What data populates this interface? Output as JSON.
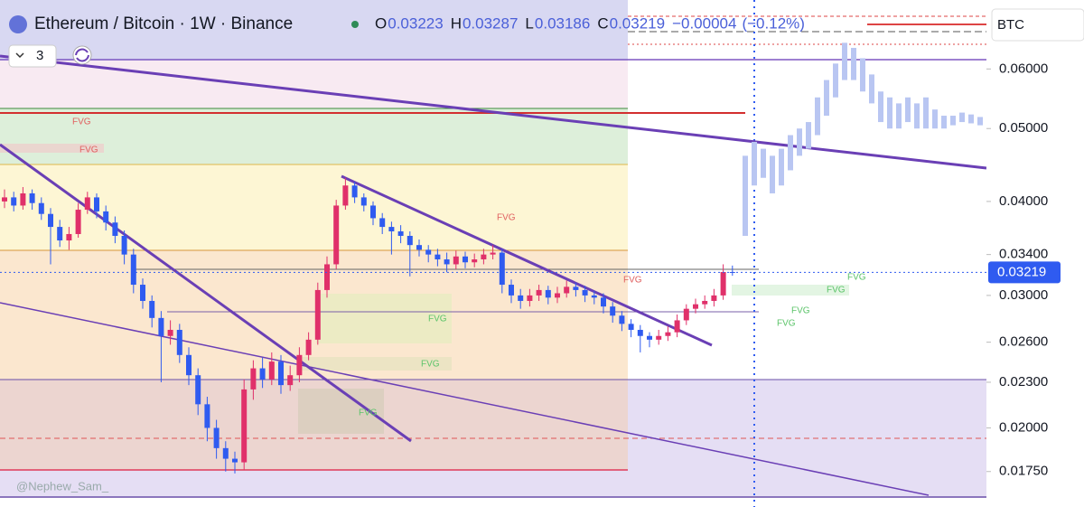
{
  "chart_data": {
    "type": "candlestick",
    "title": "Ethereum / Bitcoin · 1W · Binance",
    "ohlc_labels": [
      "O",
      "H",
      "L",
      "C"
    ],
    "change": {
      "value": -4e-05,
      "label": "−0.00004"
    },
    "change_percent": {
      "value": -0.12,
      "label": "(−0.12%)"
    },
    "currency": "BTC",
    "hidden_count": 3,
    "watermark": "@Nephew_Sam_",
    "log_scale": true,
    "up_color": "#e0306a",
    "down_color": "#2f5bf0",
    "projection_color": "#b9c6f2",
    "ylim": [
      0.0157,
      0.0741
    ],
    "yticks": [
      {
        "value": 0.06,
        "label": "0.06000"
      },
      {
        "value": 0.05,
        "label": "0.05000"
      },
      {
        "value": 0.04,
        "label": "0.04000"
      },
      {
        "value": 0.034,
        "label": "0.03400"
      },
      {
        "value": 0.03,
        "label": "0.03000"
      },
      {
        "value": 0.026,
        "label": "0.02600"
      },
      {
        "value": 0.023,
        "label": "0.02300"
      },
      {
        "value": 0.02,
        "label": "0.02000"
      },
      {
        "value": 0.0175,
        "label": "0.01750"
      }
    ],
    "last_price": 0.03219,
    "open": [
      0.04,
      0.0405,
      0.0395,
      0.041,
      0.0398,
      0.0385,
      0.037,
      0.0355,
      0.0362,
      0.039,
      0.0405,
      0.0388,
      0.0375,
      0.036,
      0.034,
      0.031,
      0.0295,
      0.028,
      0.0265,
      0.027,
      0.025,
      0.0235,
      0.0215,
      0.02,
      0.0188,
      0.0182,
      0.018,
      0.0225,
      0.024,
      0.0232,
      0.0245,
      0.0228,
      0.0235,
      0.025,
      0.0262,
      0.0305,
      0.033,
      0.0395,
      0.042,
      0.0405,
      0.0395,
      0.038,
      0.037,
      0.0365,
      0.036,
      0.035,
      0.0345,
      0.034,
      0.0335,
      0.033,
      0.0338,
      0.0332,
      0.0335,
      0.034,
      0.0342,
      0.031,
      0.03,
      0.0295,
      0.03,
      0.0305,
      0.0298,
      0.0302,
      0.0308,
      0.0305,
      0.03,
      0.0298,
      0.029,
      0.0282,
      0.0275,
      0.027,
      0.0265,
      0.0262,
      0.0265,
      0.0268,
      0.0278,
      0.0288,
      0.0292,
      0.0295,
      0.03,
      0.03223
    ],
    "high": [
      0.0415,
      0.0412,
      0.0418,
      0.0415,
      0.0405,
      0.0392,
      0.0378,
      0.037,
      0.0398,
      0.0412,
      0.041,
      0.0395,
      0.0382,
      0.0366,
      0.0346,
      0.0316,
      0.03,
      0.0286,
      0.0278,
      0.0275,
      0.0256,
      0.024,
      0.022,
      0.0205,
      0.0192,
      0.0186,
      0.0232,
      0.0246,
      0.0248,
      0.0252,
      0.025,
      0.0242,
      0.0256,
      0.0268,
      0.0312,
      0.0338,
      0.0402,
      0.043,
      0.0425,
      0.041,
      0.04,
      0.0386,
      0.0376,
      0.0372,
      0.0365,
      0.0356,
      0.035,
      0.0346,
      0.0342,
      0.0344,
      0.0343,
      0.0341,
      0.0346,
      0.035,
      0.0346,
      0.0315,
      0.0306,
      0.0306,
      0.031,
      0.0309,
      0.0308,
      0.0314,
      0.0312,
      0.0309,
      0.0304,
      0.0302,
      0.0294,
      0.0286,
      0.0279,
      0.0274,
      0.0268,
      0.027,
      0.0273,
      0.0283,
      0.0292,
      0.0297,
      0.03,
      0.0306,
      0.033,
      0.03287
    ],
    "low": [
      0.0392,
      0.0388,
      0.039,
      0.039,
      0.0378,
      0.033,
      0.0348,
      0.0345,
      0.0358,
      0.0385,
      0.038,
      0.0366,
      0.0352,
      0.033,
      0.0302,
      0.0288,
      0.0272,
      0.023,
      0.0258,
      0.0244,
      0.0228,
      0.0208,
      0.0192,
      0.0182,
      0.0175,
      0.0174,
      0.0176,
      0.0218,
      0.0226,
      0.0228,
      0.0222,
      0.0224,
      0.023,
      0.0246,
      0.0258,
      0.0298,
      0.0325,
      0.039,
      0.0398,
      0.0388,
      0.0372,
      0.0362,
      0.034,
      0.0352,
      0.0318,
      0.0338,
      0.0332,
      0.0328,
      0.0322,
      0.0325,
      0.0326,
      0.0327,
      0.033,
      0.0335,
      0.0302,
      0.0293,
      0.0288,
      0.029,
      0.0295,
      0.0292,
      0.0293,
      0.0298,
      0.0299,
      0.0294,
      0.0292,
      0.0284,
      0.0276,
      0.0269,
      0.0264,
      0.0252,
      0.0256,
      0.0258,
      0.0261,
      0.0264,
      0.0274,
      0.0284,
      0.0288,
      0.029,
      0.0296,
      0.03186
    ],
    "close": [
      0.0405,
      0.0395,
      0.041,
      0.0398,
      0.0385,
      0.037,
      0.0355,
      0.0362,
      0.039,
      0.0405,
      0.0388,
      0.0375,
      0.036,
      0.034,
      0.031,
      0.0295,
      0.028,
      0.0265,
      0.027,
      0.025,
      0.0235,
      0.0215,
      0.02,
      0.0188,
      0.0182,
      0.018,
      0.0225,
      0.024,
      0.0232,
      0.0245,
      0.0228,
      0.0235,
      0.025,
      0.0262,
      0.0305,
      0.033,
      0.0395,
      0.042,
      0.0405,
      0.0395,
      0.038,
      0.037,
      0.0365,
      0.036,
      0.035,
      0.0345,
      0.034,
      0.0335,
      0.033,
      0.0338,
      0.0332,
      0.0335,
      0.034,
      0.0342,
      0.031,
      0.03,
      0.0295,
      0.03,
      0.0305,
      0.0298,
      0.0302,
      0.0308,
      0.0305,
      0.03,
      0.0298,
      0.029,
      0.0282,
      0.0275,
      0.027,
      0.0265,
      0.0262,
      0.0265,
      0.0268,
      0.0278,
      0.0288,
      0.0292,
      0.0295,
      0.03,
      0.03223,
      0.03219
    ],
    "projection_high": [
      0.046,
      0.048,
      0.047,
      0.046,
      0.047,
      0.049,
      0.05,
      0.051,
      0.055,
      0.058,
      0.061,
      0.065,
      0.064,
      0.062,
      0.059,
      0.056,
      0.055,
      0.054,
      0.055,
      0.054,
      0.055,
      0.053,
      0.052,
      0.052,
      0.0525,
      0.0522,
      0.0518
    ],
    "projection_low": [
      0.036,
      0.042,
      0.043,
      0.041,
      0.042,
      0.044,
      0.046,
      0.047,
      0.049,
      0.052,
      0.055,
      0.058,
      0.058,
      0.056,
      0.054,
      0.051,
      0.05,
      0.05,
      0.051,
      0.05,
      0.05,
      0.05,
      0.05,
      0.0505,
      0.051,
      0.0508,
      0.0505
    ],
    "annotations": [
      {
        "text": "FVG",
        "color": "#e06060"
      },
      {
        "text": "FVG",
        "color": "#e06060"
      },
      {
        "text": "FVG",
        "color": "#e06060"
      },
      {
        "text": "FVG",
        "color": "#e06060"
      },
      {
        "text": "FVG",
        "color": "#5cc46a"
      },
      {
        "text": "FVG",
        "color": "#5cc46a"
      },
      {
        "text": "FVG",
        "color": "#5cc46a"
      },
      {
        "text": "FVG",
        "color": "#5cc46a"
      },
      {
        "text": "FVG",
        "color": "#5cc46a"
      },
      {
        "text": "FVG",
        "color": "#5cc46a"
      },
      {
        "text": "FVG",
        "color": "#5cc46a"
      }
    ]
  }
}
